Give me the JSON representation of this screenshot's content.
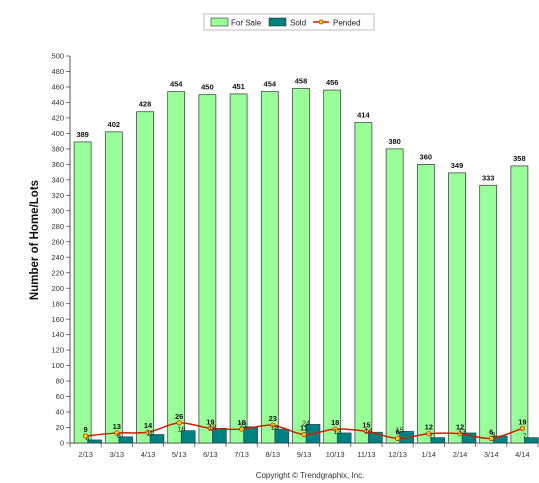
{
  "chart_data": {
    "type": "bar",
    "categories": [
      "2/13",
      "3/13",
      "4/13",
      "5/13",
      "6/13",
      "7/13",
      "8/13",
      "9/13",
      "10/13",
      "11/13",
      "12/13",
      "1/14",
      "2/14",
      "3/14",
      "4/14"
    ],
    "series": [
      {
        "name": "For Sale",
        "kind": "bar",
        "color": "#99ff99",
        "values": [
          389,
          402,
          428,
          454,
          450,
          451,
          454,
          458,
          456,
          414,
          380,
          360,
          349,
          333,
          358
        ]
      },
      {
        "name": "Sold",
        "kind": "bar",
        "color": "#008080",
        "values": [
          4,
          8,
          11,
          16,
          19,
          21,
          18,
          24,
          13,
          14,
          15,
          7,
          13,
          9,
          7
        ]
      },
      {
        "name": "Pended",
        "kind": "line",
        "color": "#cc2200",
        "values": [
          9,
          13,
          14,
          26,
          19,
          18,
          23,
          11,
          18,
          15,
          6,
          12,
          12,
          6,
          19
        ]
      }
    ],
    "title": "",
    "xlabel": "",
    "ylabel": "Number of Home/Lots",
    "ylim": [
      0,
      500
    ],
    "ytick_step": 20,
    "grid": false,
    "legend_position": "top-center",
    "copyright": "Copyright © Trendgraphix, Inc."
  }
}
